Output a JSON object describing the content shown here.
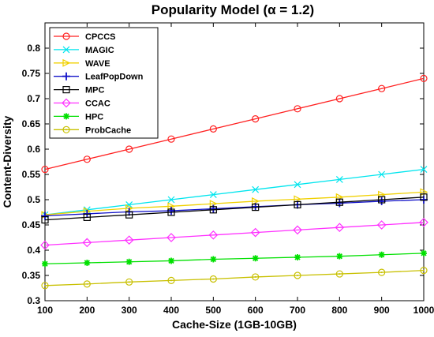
{
  "chart_data": {
    "type": "line",
    "title": "Popularity Model (α = 1.2)",
    "xlabel": "Cache-Size (1GB-10GB)",
    "ylabel": "Content-Diversity",
    "xlim": [
      100,
      1000
    ],
    "ylim": [
      0.3,
      0.85
    ],
    "xticks": [
      100,
      200,
      300,
      400,
      500,
      600,
      700,
      800,
      900,
      1000
    ],
    "yticks": [
      0.3,
      0.35,
      0.4,
      0.45,
      0.5,
      0.55,
      0.6,
      0.65,
      0.7,
      0.75,
      0.8
    ],
    "grid": false,
    "legend_position": "top-left",
    "x": [
      100,
      200,
      300,
      400,
      500,
      600,
      700,
      800,
      900,
      1000
    ],
    "series": [
      {
        "name": "CPCCS",
        "color": "#ff2020",
        "marker": "circle",
        "values": [
          0.56,
          0.58,
          0.6,
          0.62,
          0.64,
          0.66,
          0.68,
          0.7,
          0.72,
          0.74
        ]
      },
      {
        "name": "MAGIC",
        "color": "#00e5ee",
        "marker": "x",
        "values": [
          0.47,
          0.48,
          0.49,
          0.5,
          0.51,
          0.52,
          0.53,
          0.54,
          0.55,
          0.56
        ]
      },
      {
        "name": "WAVE",
        "color": "#f0d000",
        "marker": "triangle-right",
        "values": [
          0.47,
          0.477,
          0.483,
          0.487,
          0.492,
          0.497,
          0.501,
          0.505,
          0.51,
          0.515
        ]
      },
      {
        "name": "LeafPopDown",
        "color": "#1010c8",
        "marker": "plus",
        "values": [
          0.468,
          0.472,
          0.476,
          0.478,
          0.482,
          0.486,
          0.49,
          0.493,
          0.497,
          0.5
        ]
      },
      {
        "name": "MPC",
        "color": "#000000",
        "marker": "square",
        "values": [
          0.46,
          0.465,
          0.47,
          0.475,
          0.48,
          0.485,
          0.49,
          0.495,
          0.5,
          0.505
        ]
      },
      {
        "name": "CCAC",
        "color": "#ff30ff",
        "marker": "diamond",
        "values": [
          0.41,
          0.415,
          0.42,
          0.425,
          0.43,
          0.435,
          0.44,
          0.445,
          0.45,
          0.455
        ]
      },
      {
        "name": "HPC",
        "color": "#00e000",
        "marker": "asterisk",
        "values": [
          0.373,
          0.375,
          0.377,
          0.379,
          0.382,
          0.384,
          0.386,
          0.388,
          0.391,
          0.394
        ]
      },
      {
        "name": "ProbCache",
        "color": "#c8c000",
        "marker": "circle-dot",
        "values": [
          0.33,
          0.333,
          0.337,
          0.34,
          0.343,
          0.347,
          0.35,
          0.353,
          0.356,
          0.36
        ]
      }
    ]
  }
}
